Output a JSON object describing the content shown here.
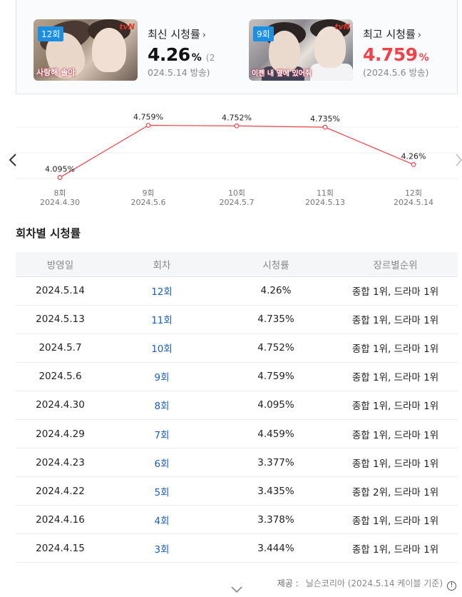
{
  "summary": {
    "latest": {
      "badge": "12회",
      "channel": "tvN",
      "caption": "사랑해 솔아",
      "label": "최신 시청률",
      "value": "4.26",
      "unit": "%",
      "date_inline": "(2",
      "date_rest": "024.5.14 방송)"
    },
    "highest": {
      "badge": "9회",
      "channel": "tvN",
      "caption": "이젠 내 옆에 있어줘",
      "label": "최고 시청률",
      "value": "4.759",
      "unit": "%",
      "date": "(2024.5.6 방송)"
    }
  },
  "chart_data": {
    "type": "line",
    "categories": [
      "8회",
      "9회",
      "10회",
      "11회",
      "12회"
    ],
    "dates": [
      "2024.4.30",
      "2024.5.6",
      "2024.5.7",
      "2024.5.13",
      "2024.5.14"
    ],
    "values": [
      4.095,
      4.759,
      4.752,
      4.735,
      4.26
    ],
    "labels": [
      "4.095%",
      "4.759%",
      "4.752%",
      "4.735%",
      "4.26%"
    ],
    "ylim": [
      3.9,
      4.9
    ],
    "line_color": "#f0424b"
  },
  "table": {
    "title": "회차별 시청률",
    "headers": [
      "방영일",
      "회차",
      "시청률",
      "장르별순위"
    ],
    "rows": [
      {
        "date": "2024.5.14",
        "episode": "12회",
        "rating": "4.26%",
        "rank": "종합 1위, 드라마 1위"
      },
      {
        "date": "2024.5.13",
        "episode": "11회",
        "rating": "4.735%",
        "rank": "종합 1위, 드라마 1위"
      },
      {
        "date": "2024.5.7",
        "episode": "10회",
        "rating": "4.752%",
        "rank": "종합 1위, 드라마 1위"
      },
      {
        "date": "2024.5.6",
        "episode": "9회",
        "rating": "4.759%",
        "rank": "종합 1위, 드라마 1위"
      },
      {
        "date": "2024.4.30",
        "episode": "8회",
        "rating": "4.095%",
        "rank": "종합 1위, 드라마 1위"
      },
      {
        "date": "2024.4.29",
        "episode": "7회",
        "rating": "4.459%",
        "rank": "종합 1위, 드라마 1위"
      },
      {
        "date": "2024.4.23",
        "episode": "6회",
        "rating": "3.377%",
        "rank": "종합 1위, 드라마 1위"
      },
      {
        "date": "2024.4.22",
        "episode": "5회",
        "rating": "3.435%",
        "rank": "종합 2위, 드라마 1위"
      },
      {
        "date": "2024.4.16",
        "episode": "4회",
        "rating": "3.378%",
        "rank": "종합 1위, 드라마 1위"
      },
      {
        "date": "2024.4.15",
        "episode": "3회",
        "rating": "3.444%",
        "rank": "종합 1위, 드라마 1위"
      }
    ]
  },
  "footer": {
    "provider_label": "제공 :",
    "provider": "닐슨코리아 (2024.5.14 케이블 기준)",
    "info_symbol": "!"
  },
  "icons": {
    "prev": "chevron-left-icon",
    "next": "chevron-right-icon",
    "more": "chevron-down-icon"
  }
}
